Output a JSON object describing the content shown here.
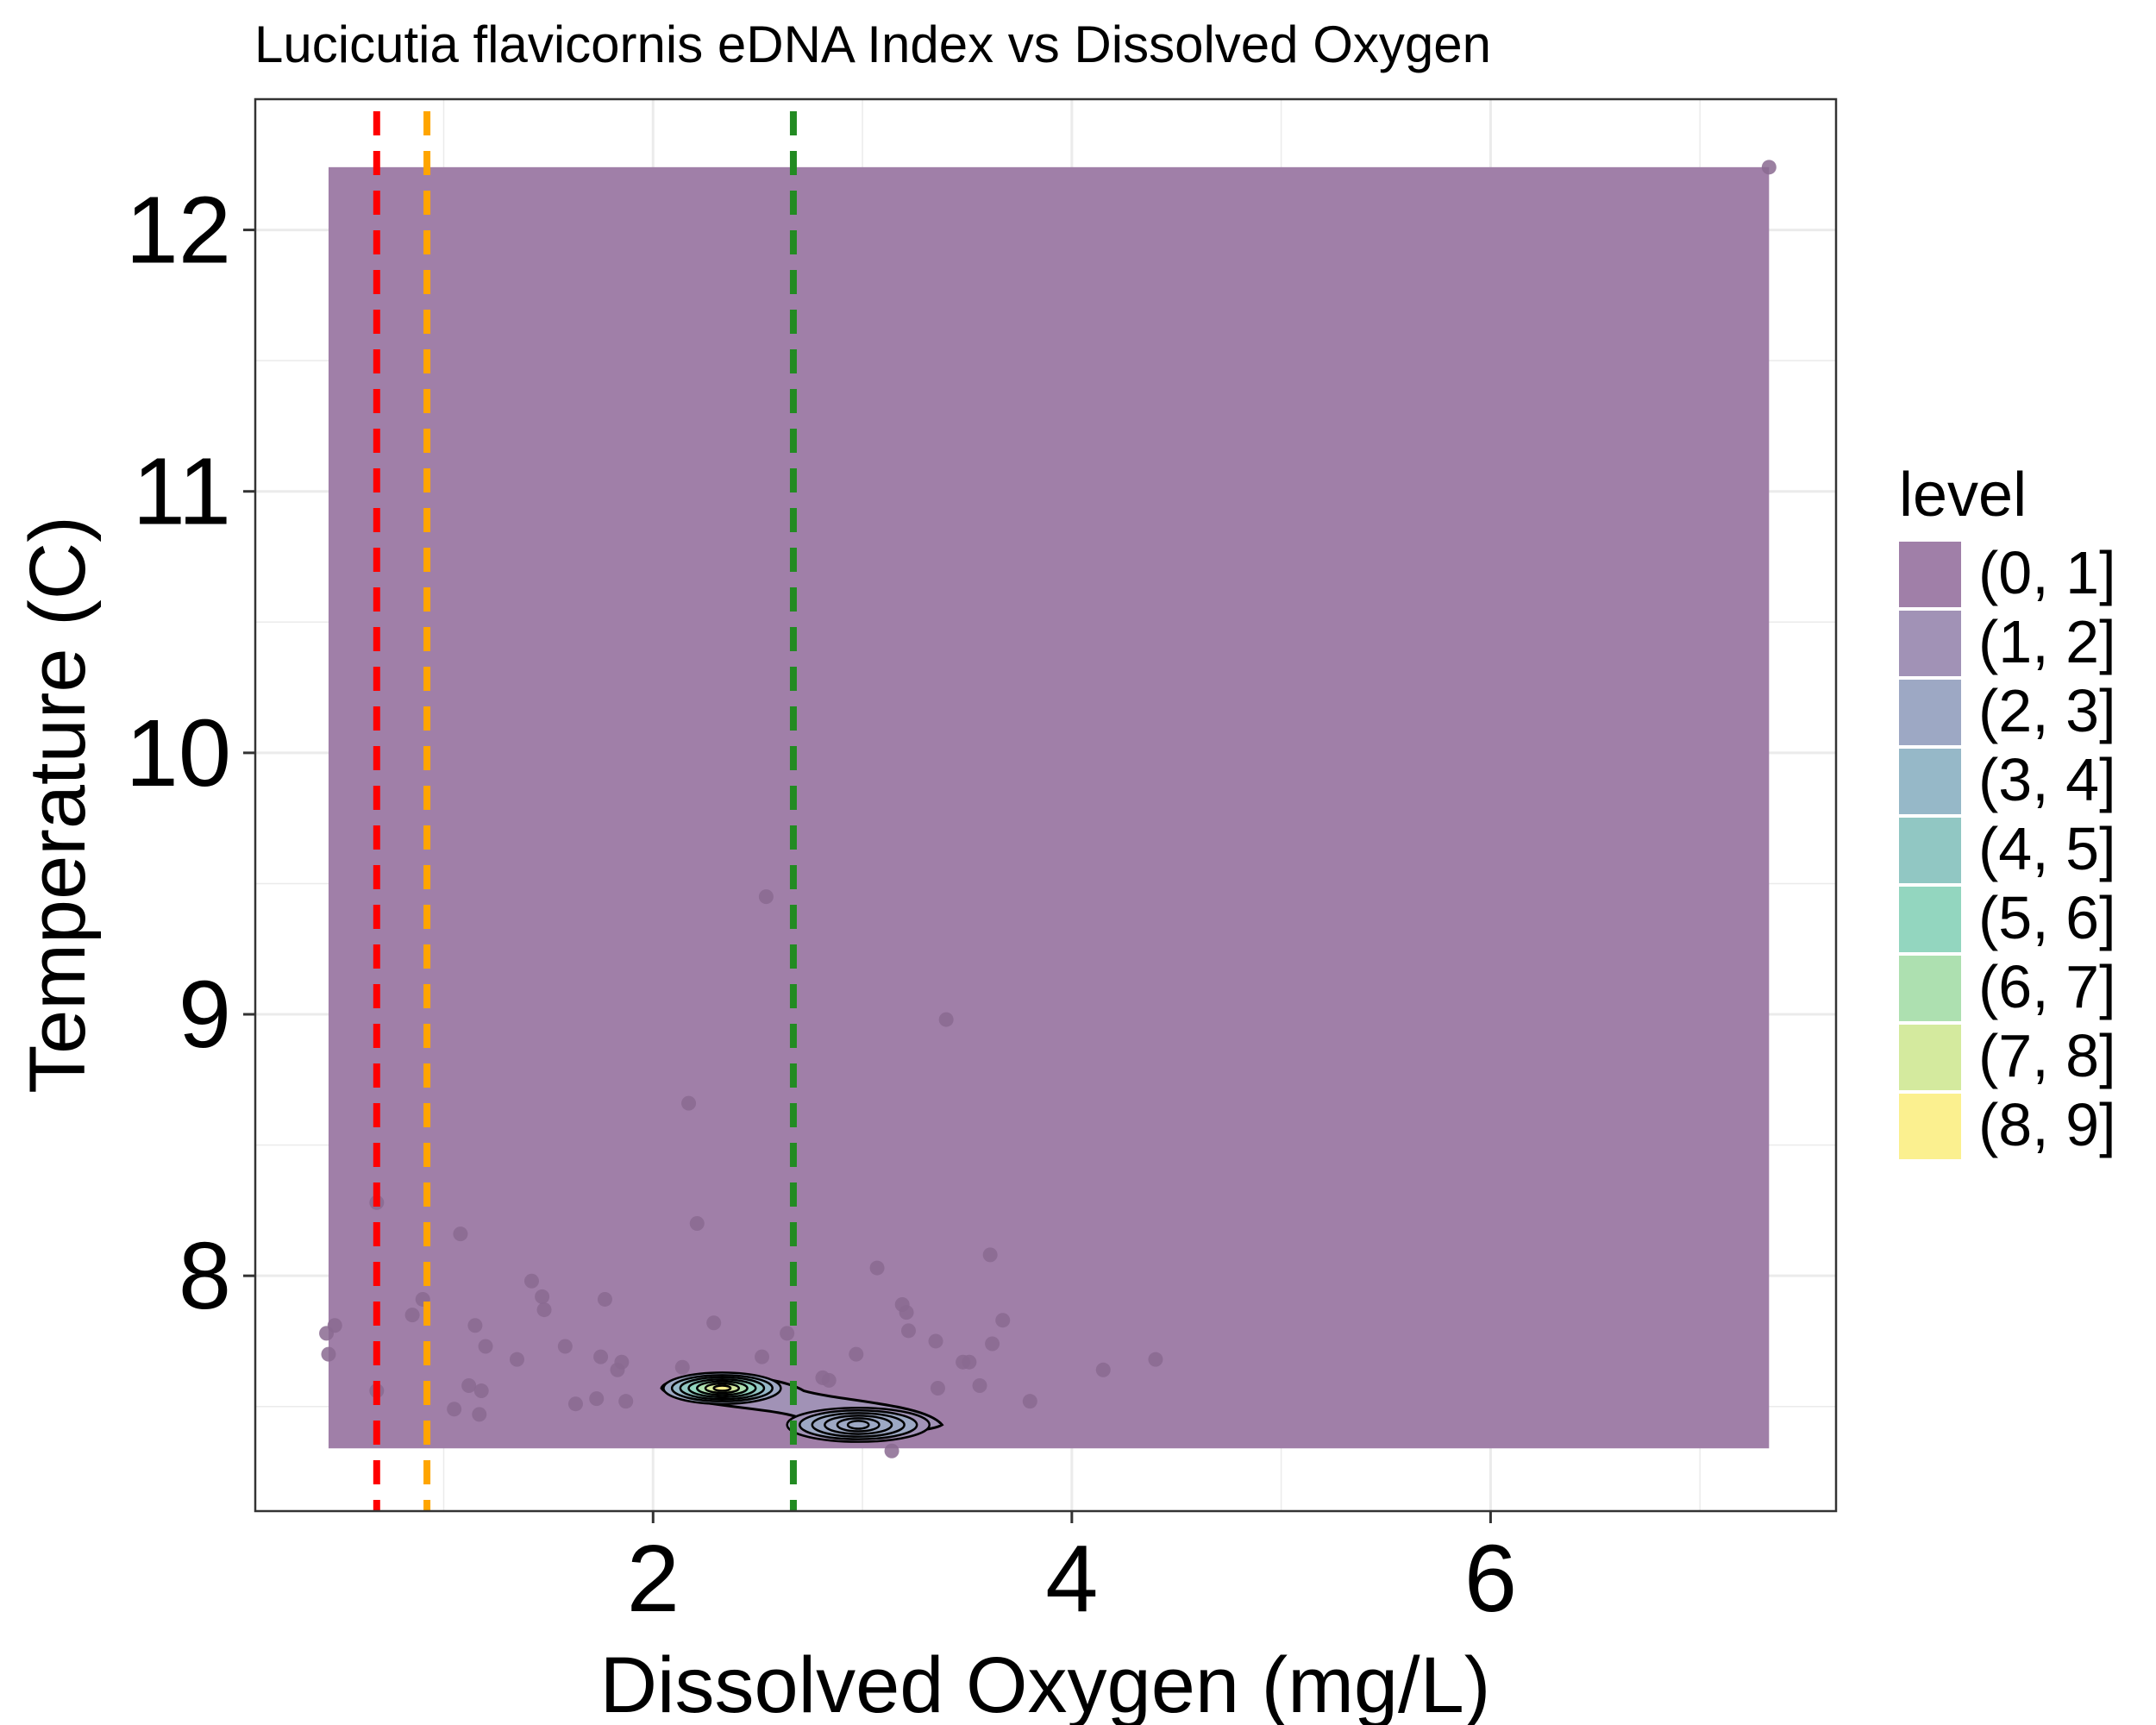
{
  "chart_data": {
    "type": "scatter",
    "title": "Lucicutia flavicornis eDNA Index vs Dissolved Oxygen",
    "xlabel": "Dissolved Oxygen (mg/L)",
    "ylabel": "Temperature (C)",
    "xlim": [
      0.1,
      7.65
    ],
    "ylim": [
      7.1,
      12.5
    ],
    "x_ticks": [
      2,
      4,
      6
    ],
    "y_ticks": [
      8,
      9,
      10,
      11,
      12
    ],
    "grid": true,
    "legend": {
      "title": "level",
      "position": "right",
      "entries": [
        "(0, 1]",
        "(1, 2]",
        "(2, 3]",
        "(3, 4]",
        "(4, 5]",
        "(5, 6]",
        "(6, 7]",
        "(7, 8]",
        "(8, 9]"
      ],
      "colors": [
        "#a07fa8",
        "#a192b6",
        "#9da8c4",
        "#96b8c8",
        "#91c7c3",
        "#93d6bf",
        "#ade0b0",
        "#d4ea9e",
        "#fbf08f"
      ]
    },
    "density_background": {
      "level": "(0, 1]",
      "x_range": [
        0.45,
        7.33
      ],
      "y_range": [
        7.34,
        12.24
      ],
      "color": "#a07fa8"
    },
    "vlines": [
      {
        "x": 0.68,
        "color": "#ff0000"
      },
      {
        "x": 0.92,
        "color": "#ffa500"
      },
      {
        "x": 2.67,
        "color": "#228b22"
      }
    ],
    "points": [
      [
        0.44,
        7.78
      ],
      [
        0.45,
        7.7
      ],
      [
        0.48,
        7.81
      ],
      [
        0.68,
        8.28
      ],
      [
        0.68,
        7.56
      ],
      [
        0.85,
        7.85
      ],
      [
        0.9,
        7.91
      ],
      [
        1.05,
        7.49
      ],
      [
        1.08,
        8.16
      ],
      [
        1.12,
        7.58
      ],
      [
        1.15,
        7.81
      ],
      [
        1.17,
        7.47
      ],
      [
        1.18,
        7.56
      ],
      [
        1.2,
        7.73
      ],
      [
        1.35,
        7.68
      ],
      [
        1.42,
        7.98
      ],
      [
        1.47,
        7.92
      ],
      [
        1.48,
        7.87
      ],
      [
        1.58,
        7.73
      ],
      [
        1.63,
        7.51
      ],
      [
        1.73,
        7.53
      ],
      [
        1.75,
        7.69
      ],
      [
        1.77,
        7.91
      ],
      [
        1.83,
        7.64
      ],
      [
        1.85,
        7.67
      ],
      [
        1.87,
        7.52
      ],
      [
        2.14,
        7.65
      ],
      [
        2.17,
        8.66
      ],
      [
        2.21,
        8.2
      ],
      [
        2.29,
        7.82
      ],
      [
        2.52,
        7.69
      ],
      [
        2.54,
        9.45
      ],
      [
        2.64,
        7.78
      ],
      [
        2.81,
        7.61
      ],
      [
        2.84,
        7.6
      ],
      [
        2.97,
        7.7
      ],
      [
        3.07,
        8.03
      ],
      [
        3.14,
        7.33
      ],
      [
        3.19,
        7.89
      ],
      [
        3.21,
        7.86
      ],
      [
        3.22,
        7.79
      ],
      [
        3.35,
        7.75
      ],
      [
        3.36,
        7.57
      ],
      [
        3.4,
        8.98
      ],
      [
        3.48,
        7.67
      ],
      [
        3.51,
        7.67
      ],
      [
        3.56,
        7.58
      ],
      [
        3.61,
        8.08
      ],
      [
        3.62,
        7.74
      ],
      [
        3.67,
        7.83
      ],
      [
        3.8,
        7.52
      ],
      [
        4.15,
        7.64
      ],
      [
        4.4,
        7.68
      ],
      [
        7.33,
        12.24
      ]
    ],
    "point_color": "#8a6a90",
    "contour_peaks": [
      {
        "x": 2.33,
        "y": 7.57
      },
      {
        "x": 2.98,
        "y": 7.43
      }
    ]
  }
}
